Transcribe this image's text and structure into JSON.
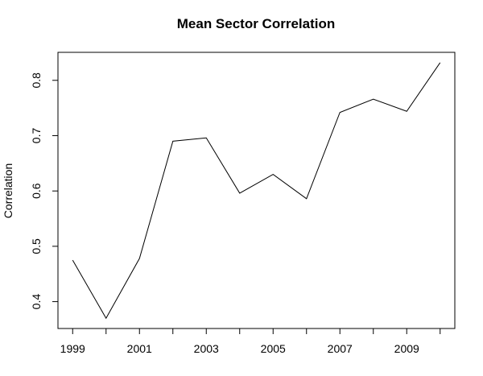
{
  "chart_data": {
    "type": "line",
    "title": "Mean Sector Correlation",
    "xlabel": "",
    "ylabel": "Correlation",
    "x": [
      1999,
      2000,
      2001,
      2002,
      2003,
      2004,
      2005,
      2006,
      2007,
      2008,
      2009,
      2010
    ],
    "series": [
      {
        "values": [
          0.475,
          0.37,
          0.478,
          0.69,
          0.696,
          0.596,
          0.63,
          0.586,
          0.742,
          0.766,
          0.744,
          0.832
        ]
      }
    ],
    "x_ticks": [
      1999,
      2000,
      2001,
      2002,
      2003,
      2004,
      2005,
      2006,
      2007,
      2008,
      2009,
      2010
    ],
    "x_tick_labels": [
      "1999",
      "",
      "2001",
      "",
      "2003",
      "",
      "2005",
      "",
      "2007",
      "",
      "2009",
      ""
    ],
    "y_ticks": [
      0.4,
      0.5,
      0.6,
      0.7,
      0.8
    ],
    "y_tick_labels": [
      "0.4",
      "0.5",
      "0.6",
      "0.7",
      "0.8"
    ],
    "xlim": [
      1998.56,
      2010.44
    ],
    "ylim": [
      0.3514,
      0.8506
    ],
    "grid": false,
    "legend": "none",
    "line_color": "#000000"
  }
}
